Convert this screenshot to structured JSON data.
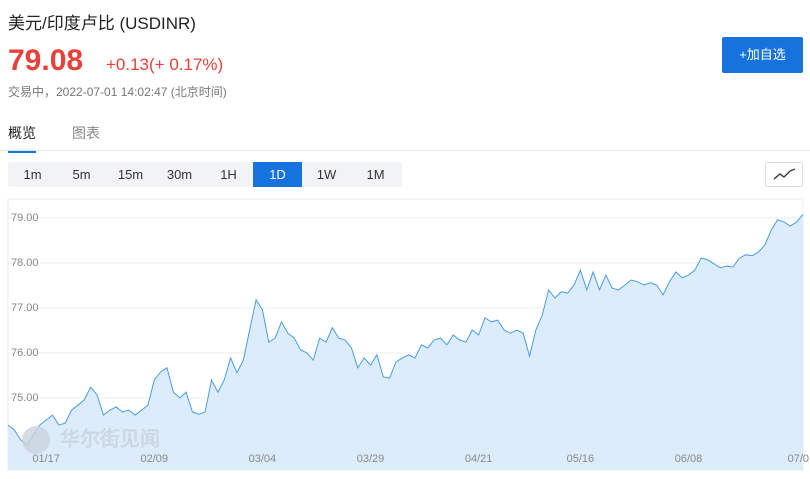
{
  "header": {
    "title": "美元/印度卢比 (USDINR)",
    "price": "79.08",
    "change": "+0.13(+ 0.17%)",
    "status": "交易中，2022-07-01 14:02:47 (北京时间)",
    "button": "+加自选"
  },
  "tabs": {
    "items": [
      "概览",
      "图表"
    ],
    "active": 0
  },
  "ranges": {
    "items": [
      "1m",
      "5m",
      "15m",
      "30m",
      "1H",
      "1D",
      "1W",
      "1M"
    ],
    "active": 5
  },
  "watermark": "华尔街见闻",
  "chart_data": {
    "type": "area",
    "color": "#4a9de6",
    "fill": "#dcecfb",
    "grid": true,
    "ylim": [
      73.4,
      79.42
    ],
    "yticks": [
      {
        "value": 75,
        "label": "75.00"
      },
      {
        "value": 76,
        "label": "76.00"
      },
      {
        "value": 77,
        "label": "77.00"
      },
      {
        "value": 78,
        "label": "78.00"
      },
      {
        "value": 79,
        "label": "79.00"
      }
    ],
    "categories": [
      null,
      null,
      null,
      null,
      null,
      null,
      "01/17",
      null,
      null,
      null,
      null,
      null,
      null,
      null,
      null,
      null,
      null,
      null,
      null,
      null,
      null,
      null,
      null,
      "02/09",
      null,
      null,
      null,
      null,
      null,
      null,
      null,
      null,
      null,
      null,
      null,
      null,
      null,
      null,
      null,
      null,
      "03/04",
      null,
      null,
      null,
      null,
      null,
      null,
      null,
      null,
      null,
      null,
      null,
      null,
      null,
      null,
      null,
      null,
      "03/29",
      null,
      null,
      null,
      null,
      null,
      null,
      null,
      null,
      null,
      null,
      null,
      null,
      null,
      null,
      null,
      null,
      "04/21",
      null,
      null,
      null,
      null,
      null,
      null,
      null,
      null,
      null,
      null,
      null,
      null,
      null,
      null,
      null,
      "05/16",
      null,
      null,
      null,
      null,
      null,
      null,
      null,
      null,
      null,
      null,
      null,
      null,
      null,
      null,
      null,
      null,
      "06/08",
      null,
      null,
      null,
      null,
      null,
      null,
      null,
      null,
      null,
      null,
      null,
      null,
      null,
      null,
      null,
      null,
      "07/0",
      null
    ],
    "values": [
      74.4,
      74.29,
      74.07,
      73.96,
      74.18,
      74.4,
      74.51,
      74.62,
      74.4,
      74.44,
      74.73,
      74.84,
      74.96,
      75.24,
      75.07,
      74.62,
      74.73,
      74.8,
      74.69,
      74.73,
      74.62,
      74.73,
      74.84,
      75.4,
      75.58,
      75.67,
      75.13,
      75.0,
      75.13,
      74.69,
      74.64,
      74.69,
      75.4,
      75.13,
      75.4,
      75.89,
      75.56,
      75.84,
      76.51,
      77.18,
      76.96,
      76.24,
      76.33,
      76.69,
      76.44,
      76.33,
      76.07,
      76.0,
      75.84,
      76.33,
      76.24,
      76.56,
      76.33,
      76.29,
      76.11,
      75.67,
      75.89,
      75.73,
      75.96,
      75.47,
      75.44,
      75.8,
      75.89,
      75.96,
      75.89,
      76.18,
      76.11,
      76.29,
      76.33,
      76.18,
      76.4,
      76.29,
      76.24,
      76.51,
      76.4,
      76.78,
      76.69,
      76.73,
      76.51,
      76.44,
      76.51,
      76.44,
      75.93,
      76.51,
      76.84,
      77.4,
      77.22,
      77.36,
      77.33,
      77.51,
      77.84,
      77.4,
      77.8,
      77.4,
      77.73,
      77.44,
      77.4,
      77.51,
      77.62,
      77.58,
      77.51,
      77.56,
      77.51,
      77.29,
      77.58,
      77.8,
      77.67,
      77.73,
      77.84,
      78.11,
      78.07,
      77.98,
      77.89,
      77.93,
      77.91,
      78.11,
      78.18,
      78.16,
      78.24,
      78.4,
      78.73,
      78.96,
      78.91,
      78.82,
      78.91,
      79.08
    ]
  }
}
